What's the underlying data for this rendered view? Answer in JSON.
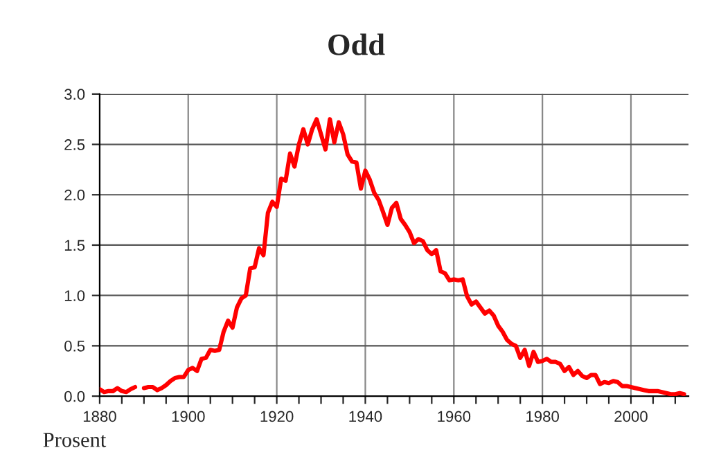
{
  "chart_data": {
    "type": "line",
    "title": "Odd",
    "ylabel": "Prosent",
    "x": [
      1880,
      1881,
      1882,
      1883,
      1884,
      1885,
      1886,
      1887,
      1888,
      1889,
      1890,
      1891,
      1892,
      1893,
      1894,
      1895,
      1896,
      1897,
      1898,
      1899,
      1900,
      1901,
      1902,
      1903,
      1904,
      1905,
      1906,
      1907,
      1908,
      1909,
      1910,
      1911,
      1912,
      1913,
      1914,
      1915,
      1916,
      1917,
      1918,
      1919,
      1920,
      1921,
      1922,
      1923,
      1924,
      1925,
      1926,
      1927,
      1928,
      1929,
      1930,
      1931,
      1932,
      1933,
      1934,
      1935,
      1936,
      1937,
      1938,
      1939,
      1940,
      1941,
      1942,
      1943,
      1944,
      1945,
      1946,
      1947,
      1948,
      1949,
      1950,
      1951,
      1952,
      1953,
      1954,
      1955,
      1956,
      1957,
      1958,
      1959,
      1960,
      1961,
      1962,
      1963,
      1964,
      1965,
      1966,
      1967,
      1968,
      1969,
      1970,
      1971,
      1972,
      1973,
      1974,
      1975,
      1976,
      1977,
      1978,
      1979,
      1980,
      1981,
      1982,
      1983,
      1984,
      1985,
      1986,
      1987,
      1988,
      1989,
      1990,
      1991,
      1992,
      1993,
      1994,
      1995,
      1996,
      1997,
      1998,
      1999,
      2000,
      2001,
      2002,
      2003,
      2004,
      2005,
      2006,
      2007,
      2008,
      2009,
      2010,
      2011,
      2012
    ],
    "series": [
      {
        "color": "#ff0000",
        "values": [
          0.07,
          0.04,
          0.05,
          0.05,
          0.08,
          0.05,
          0.04,
          0.07,
          0.09,
          null,
          0.08,
          0.09,
          0.09,
          0.06,
          0.08,
          0.11,
          0.15,
          0.18,
          0.19,
          0.19,
          0.26,
          0.28,
          0.25,
          0.37,
          0.38,
          0.46,
          0.45,
          0.46,
          0.64,
          0.75,
          0.68,
          0.88,
          0.97,
          1.0,
          1.27,
          1.28,
          1.47,
          1.4,
          1.82,
          1.93,
          1.88,
          2.16,
          2.14,
          2.41,
          2.28,
          2.5,
          2.65,
          2.5,
          2.65,
          2.75,
          2.6,
          2.45,
          2.75,
          2.52,
          2.72,
          2.6,
          2.4,
          2.33,
          2.32,
          2.06,
          2.24,
          2.15,
          2.02,
          1.95,
          1.83,
          1.7,
          1.87,
          1.92,
          1.76,
          1.7,
          1.63,
          1.52,
          1.56,
          1.54,
          1.45,
          1.41,
          1.45,
          1.24,
          1.22,
          1.15,
          1.16,
          1.15,
          1.16,
          0.99,
          0.91,
          0.94,
          0.88,
          0.82,
          0.85,
          0.8,
          0.7,
          0.64,
          0.56,
          0.52,
          0.5,
          0.38,
          0.46,
          0.3,
          0.44,
          0.34,
          0.35,
          0.37,
          0.34,
          0.34,
          0.32,
          0.25,
          0.29,
          0.21,
          0.25,
          0.2,
          0.18,
          0.21,
          0.21,
          0.12,
          0.14,
          0.13,
          0.15,
          0.14,
          0.1,
          0.1,
          0.09,
          0.08,
          0.07,
          0.06,
          0.05,
          0.05,
          0.05,
          0.04,
          0.03,
          0.02,
          0.02,
          0.03,
          0.02
        ]
      }
    ],
    "xlim": [
      1880,
      2013
    ],
    "ylim": [
      0,
      3.0
    ],
    "xticks": [
      1880,
      {
        "value": 1885,
        "label": null
      },
      {
        "value": 1890,
        "label": null
      },
      {
        "value": 1895,
        "label": null
      },
      1900,
      {
        "value": 1905,
        "label": null
      },
      {
        "value": 1910,
        "label": null
      },
      {
        "value": 1915,
        "label": null
      },
      1920,
      {
        "value": 1925,
        "label": null
      },
      {
        "value": 1930,
        "label": null
      },
      {
        "value": 1935,
        "label": null
      },
      1940,
      {
        "value": 1945,
        "label": null
      },
      {
        "value": 1950,
        "label": null
      },
      {
        "value": 1955,
        "label": null
      },
      1960,
      {
        "value": 1965,
        "label": null
      },
      {
        "value": 1970,
        "label": null
      },
      {
        "value": 1975,
        "label": null
      },
      1980,
      {
        "value": 1985,
        "label": null
      },
      {
        "value": 1990,
        "label": null
      },
      {
        "value": 1995,
        "label": null
      },
      2000,
      {
        "value": 2005,
        "label": null
      },
      {
        "value": 2010,
        "label": null
      }
    ],
    "yticks": [
      {
        "value": 0,
        "label": "0.0"
      },
      {
        "value": 0.5,
        "label": "0.5"
      },
      {
        "value": 1.0,
        "label": "1.0"
      },
      {
        "value": 1.5,
        "label": "1.5"
      },
      {
        "value": 2.0,
        "label": "2.0"
      },
      {
        "value": 2.5,
        "label": "2.5"
      },
      {
        "value": 3.0,
        "label": "3.0"
      }
    ],
    "grid": true,
    "line_style": "solid",
    "marker": "none"
  }
}
